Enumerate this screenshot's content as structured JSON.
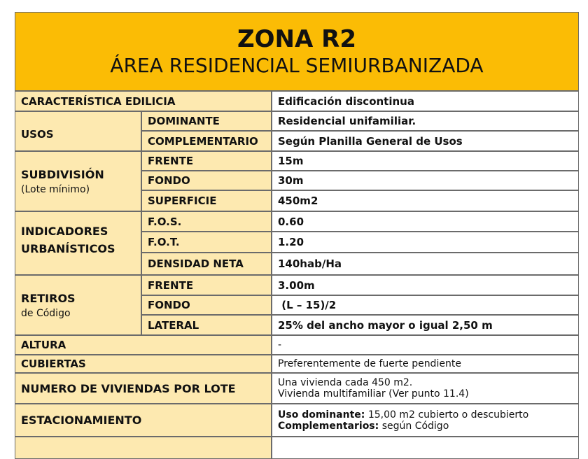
{
  "header": {
    "title": "ZONA R2",
    "subtitle": "ÁREA RESIDENCIAL SEMIURBANIZADA"
  },
  "colors": {
    "header": "#fbbc05",
    "label_cells": "#fde9b0"
  },
  "rows": {
    "caracteristica": {
      "label": "CARACTERÍSTICA EDILICIA",
      "value": "Edificación discontinua"
    },
    "usos": {
      "label": "USOS",
      "dominante": "DOMINANTE",
      "dominante_value": "Residencial unifamiliar.",
      "complementario": "COMPLEMENTARIO",
      "complementario_value": "Según Planilla General de Usos"
    },
    "subdivision": {
      "label": "SUBDIVISIÓN",
      "note": "(Lote mínimo)",
      "frente": "FRENTE",
      "frente_value": "15m",
      "fondo": "FONDO",
      "fondo_value": "30m",
      "superficie": "SUPERFICIE",
      "superficie_value": "450m2"
    },
    "indicadores": {
      "label1": "INDICADORES",
      "label2": "URBANÍSTICOS",
      "fos": "F.O.S.",
      "fos_value": "0.60",
      "fot": "F.O.T.",
      "fot_value": "1.20",
      "densidad": "DENSIDAD NETA",
      "densidad_value": "140hab/Ha"
    },
    "retiros": {
      "label": "RETIROS",
      "note": "de Código",
      "frente": "FRENTE",
      "frente_value": "3.00m",
      "fondo": "FONDO",
      "fondo_value": " (L – 15)/2",
      "lateral": "LATERAL",
      "lateral_value": "25% del ancho mayor o igual 2,50 m"
    },
    "altura": {
      "label": "ALTURA",
      "value": "-"
    },
    "cubiertas": {
      "label": "CUBIERTAS",
      "value": "Preferentemente de fuerte pendiente"
    },
    "viviendas": {
      "label": "NUMERO DE VIVIENDAS POR LOTE",
      "line1": "Una vivienda cada 450 m2.",
      "line2": "Vivienda multifamiliar (Ver punto 11.4)"
    },
    "estacionamiento": {
      "label": "ESTACIONAMIENTO",
      "bold1": "Uso dominante:",
      "text1": " 15,00 m2 cubierto o descubierto",
      "bold2": "Complementarios:",
      "text2": " según Código"
    }
  }
}
